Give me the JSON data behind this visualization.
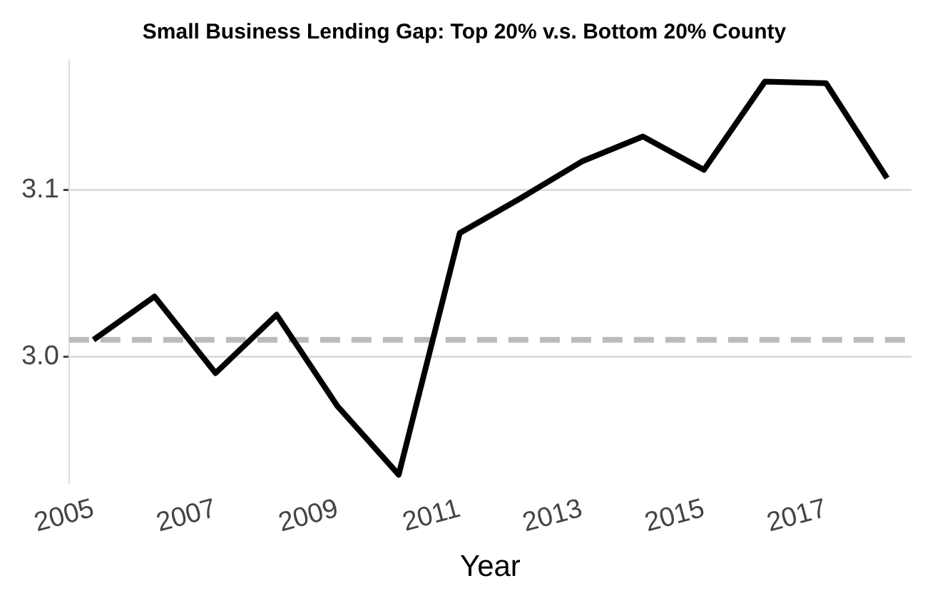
{
  "chart_data": {
    "type": "line",
    "title": "Small Business Lending Gap: Top 20% v.s. Bottom 20% County",
    "xlabel": "Year",
    "x": [
      2005,
      2006,
      2007,
      2008,
      2009,
      2010,
      2011,
      2012,
      2013,
      2014,
      2015,
      2016,
      2017,
      2018
    ],
    "series": [
      {
        "color": "#000000",
        "values": [
          3.01,
          3.036,
          2.99,
          3.025,
          2.97,
          2.929,
          3.074,
          3.095,
          3.117,
          3.132,
          3.112,
          3.165,
          3.164,
          3.107
        ]
      }
    ],
    "xlim": [
      2004.6,
      2018.4
    ],
    "xticks": [
      2005,
      2007,
      2009,
      2011,
      2013,
      2015,
      2017
    ],
    "ylim": [
      2.924,
      3.178
    ],
    "yticks": [
      {
        "value": 3.0,
        "label": "3.0"
      },
      {
        "value": 3.1,
        "label": "3.1"
      }
    ],
    "ref_lines": [
      {
        "axis": "y",
        "value": 3.01,
        "color": "#bbbbbb",
        "line_style": "dashed"
      }
    ],
    "grid": "y",
    "legend": false,
    "marker": "none",
    "line_style": "solid"
  }
}
